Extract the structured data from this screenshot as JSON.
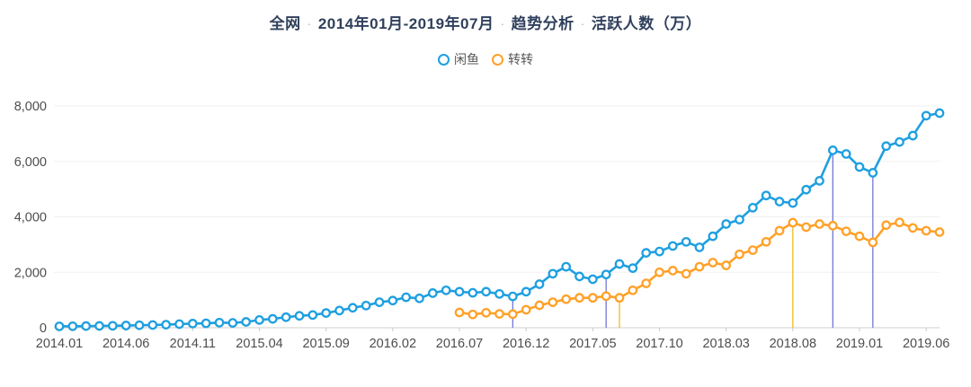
{
  "title": {
    "part1": "全网",
    "part2": "2014年01月-2019年07月",
    "part3": "趋势分析",
    "part4": "活跃人数（万）",
    "separator": "·"
  },
  "legend": {
    "items": [
      {
        "label": "闲鱼",
        "color": "#1e9fe0"
      },
      {
        "label": "转转",
        "color": "#ffa128"
      }
    ]
  },
  "colors": {
    "xianyu_line": "#1e9fe0",
    "zhuanzhuan_line": "#ffa128",
    "annotation_purple": "#7277d8",
    "annotation_yellow": "#f0bc1e",
    "grid": "#f0f0f0",
    "axis": "#cccccc",
    "tick_text": "#4d4d4d",
    "title_text": "#30405c"
  },
  "chart_data": {
    "type": "line",
    "title": "全网 · 2014年01月-2019年07月 · 趋势分析 · 活跃人数（万）",
    "x_start": "2014.01",
    "x_end": "2019.07",
    "n_points": 67,
    "months_per_tick": 5,
    "x_tick_labels": [
      "2014.01",
      "2014.06",
      "2014.11",
      "2015.04",
      "2015.09",
      "2016.02",
      "2016.07",
      "2016.12",
      "2017.05",
      "2017.10",
      "2018.03",
      "2018.08",
      "2019.01",
      "2019.06"
    ],
    "ylim": [
      0,
      8000
    ],
    "y_ticks": [
      0,
      2000,
      4000,
      6000,
      8000
    ],
    "y_tick_labels": [
      "0",
      "2,000",
      "4,000",
      "6,000",
      "8,000"
    ],
    "grid": true,
    "legend_position": "top",
    "series": [
      {
        "name": "闲鱼",
        "key": "xianyu",
        "color": "#1e9fe0",
        "start_index": 0,
        "start_month": "2014.01",
        "values": [
          50,
          55,
          60,
          65,
          70,
          80,
          90,
          100,
          110,
          130,
          150,
          160,
          185,
          175,
          210,
          280,
          320,
          380,
          430,
          460,
          530,
          620,
          720,
          800,
          920,
          980,
          1100,
          1060,
          1250,
          1350,
          1300,
          1260,
          1300,
          1220,
          1130,
          1300,
          1570,
          1950,
          2200,
          1850,
          1750,
          1920,
          2300,
          2150,
          2700,
          2750,
          2950,
          3100,
          2900,
          3300,
          3740,
          3900,
          4330,
          4770,
          4550,
          4500,
          4980,
          5300,
          6400,
          6270,
          5800,
          5590,
          6550,
          6700,
          6930,
          7650,
          7740
        ]
      },
      {
        "name": "转转",
        "key": "zhuanzhuan",
        "color": "#ffa128",
        "start_index": 30,
        "start_month": "2016.07",
        "values": [
          550,
          480,
          540,
          500,
          490,
          650,
          810,
          920,
          1030,
          1080,
          1080,
          1140,
          1080,
          1350,
          1600,
          2000,
          2060,
          1950,
          2200,
          2350,
          2250,
          2650,
          2800,
          3100,
          3500,
          3790,
          3630,
          3740,
          3680,
          3480,
          3300,
          3080,
          3700,
          3800,
          3600,
          3500,
          3450
        ]
      }
    ],
    "annotation_lines": [
      {
        "series": "xianyu",
        "month_index": 34,
        "month_label": "2016.11",
        "value": 1130,
        "color": "#7277d8"
      },
      {
        "series": "xianyu",
        "month_index": 41,
        "month_label": "2017.06",
        "value": 1920,
        "color": "#7277d8"
      },
      {
        "series": "zhuanzhuan",
        "month_index": 42,
        "month_label": "2017.07",
        "value": 1080,
        "color": "#f0bc1e"
      },
      {
        "series": "zhuanzhuan",
        "month_index": 55,
        "month_label": "2018.08",
        "value": 3790,
        "color": "#f0bc1e"
      },
      {
        "series": "xianyu",
        "month_index": 58,
        "month_label": "2018.11",
        "value": 6400,
        "color": "#7277d8"
      },
      {
        "series": "xianyu",
        "month_index": 61,
        "month_label": "2019.02",
        "value": 5590,
        "color": "#7277d8"
      }
    ]
  }
}
